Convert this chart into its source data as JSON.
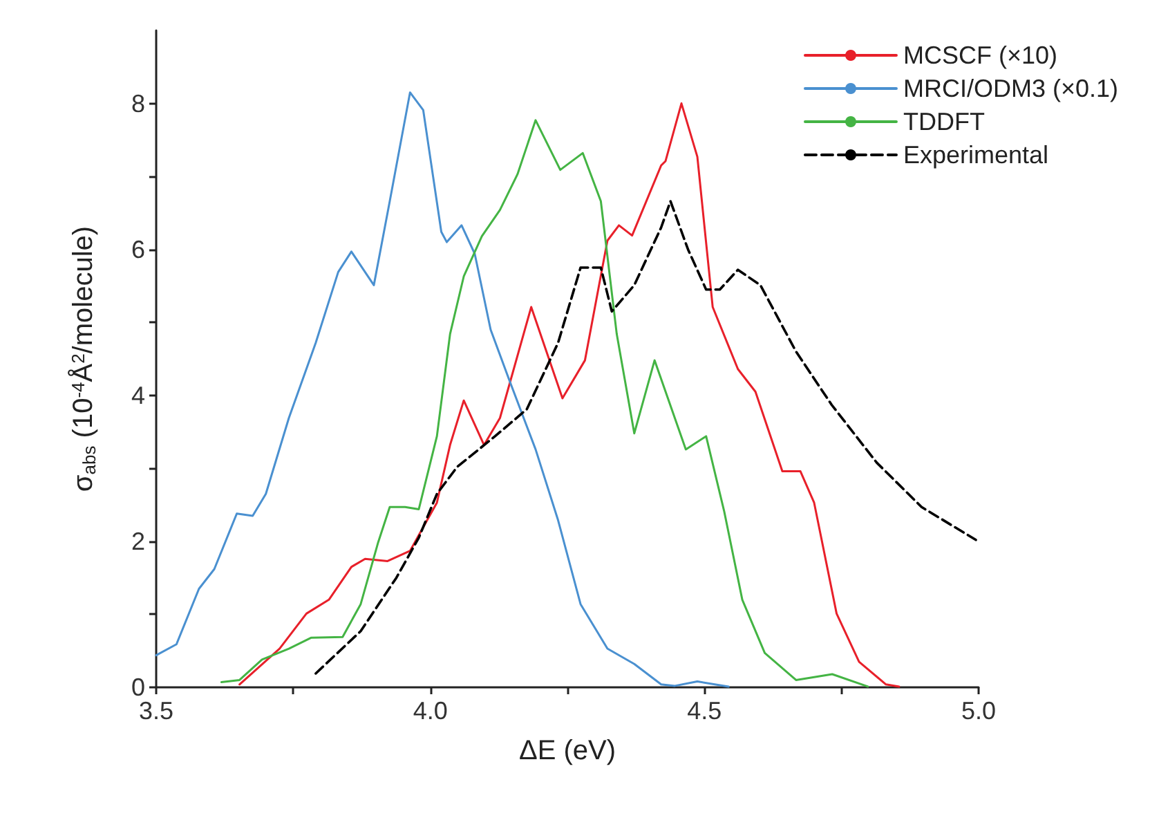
{
  "chart_data": {
    "type": "line",
    "xlabel": "ΔE (eV)",
    "ylabel": "σ$_{abs}$ (10$^{-4}$Å$^{2}$/molecule)",
    "xlim": [
      3.5,
      5.0
    ],
    "ylim": [
      0,
      9
    ],
    "xticks": [
      3.5,
      {
        "value": 3.75,
        "label": null
      },
      "4.0",
      {
        "value": 4.25,
        "label": null
      },
      4.5,
      {
        "value": 4.75,
        "label": null
      },
      "5.0"
    ],
    "yticks": [
      0,
      {
        "value": 1,
        "label": null
      },
      2,
      {
        "value": 3,
        "label": null
      },
      4,
      {
        "value": 5,
        "label": null
      },
      6,
      {
        "value": 7,
        "label": null
      },
      8
    ],
    "grid": false,
    "legend": "top right",
    "marker": "none",
    "series": [
      {
        "name": "MCSCF (×10)",
        "color": "#e8202a",
        "line_style": "solid",
        "x": [
          3.652,
          3.725,
          3.774,
          3.815,
          3.856,
          3.881,
          3.922,
          3.963,
          4.012,
          4.036,
          4.061,
          4.098,
          4.127,
          4.184,
          4.241,
          4.282,
          4.323,
          4.344,
          4.368,
          4.421,
          4.429,
          4.458,
          4.487,
          4.515,
          4.561,
          4.593,
          4.642,
          4.675,
          4.7,
          4.741,
          4.782,
          4.831,
          4.855
        ],
        "values": [
          0.04,
          0.53,
          1.01,
          1.2,
          1.65,
          1.76,
          1.73,
          1.87,
          2.53,
          3.32,
          3.93,
          3.32,
          3.69,
          5.21,
          3.96,
          4.48,
          6.12,
          6.33,
          6.19,
          7.15,
          7.21,
          8.0,
          7.27,
          5.21,
          4.36,
          4.05,
          2.96,
          2.96,
          2.53,
          1.01,
          0.35,
          0.04,
          0.01
        ]
      },
      {
        "name": "MRCI/ODM3 (×0.1)",
        "color": "#4a90d0",
        "line_style": "solid",
        "x": [
          3.5,
          3.537,
          3.578,
          3.606,
          3.647,
          3.676,
          3.7,
          3.742,
          3.791,
          3.832,
          3.856,
          3.897,
          3.926,
          3.963,
          3.987,
          4.02,
          4.03,
          4.057,
          4.081,
          4.11,
          4.143,
          4.192,
          4.233,
          4.274,
          4.323,
          4.372,
          4.421,
          4.446,
          4.487,
          4.544
        ],
        "values": [
          0.44,
          0.59,
          1.35,
          1.62,
          2.38,
          2.35,
          2.65,
          3.69,
          4.72,
          5.69,
          5.97,
          5.51,
          6.66,
          8.15,
          7.91,
          6.24,
          6.1,
          6.33,
          5.94,
          4.9,
          4.23,
          3.26,
          2.29,
          1.14,
          0.53,
          0.32,
          0.04,
          0.02,
          0.08,
          0.01
        ]
      },
      {
        "name": "TDDFT",
        "color": "#44b444",
        "line_style": "solid",
        "x": [
          3.619,
          3.652,
          3.693,
          3.742,
          3.783,
          3.84,
          3.873,
          3.905,
          3.926,
          3.954,
          3.979,
          4.012,
          4.036,
          4.061,
          4.094,
          4.127,
          4.159,
          4.192,
          4.237,
          4.278,
          4.311,
          4.34,
          4.372,
          4.409,
          4.466,
          4.503,
          4.536,
          4.569,
          4.61,
          4.667,
          4.733,
          4.798
        ],
        "values": [
          0.07,
          0.1,
          0.38,
          0.53,
          0.68,
          0.69,
          1.14,
          1.99,
          2.47,
          2.47,
          2.44,
          3.44,
          4.84,
          5.63,
          6.18,
          6.54,
          7.03,
          7.77,
          7.09,
          7.32,
          6.66,
          4.84,
          3.48,
          4.48,
          3.26,
          3.44,
          2.41,
          1.2,
          0.47,
          0.1,
          0.18,
          0.01
        ]
      },
      {
        "name": "Experimental",
        "color": "#000000",
        "line_style": "dashed",
        "x": [
          3.791,
          3.873,
          3.938,
          3.979,
          4.012,
          4.049,
          4.118,
          4.176,
          4.233,
          4.274,
          4.311,
          4.331,
          4.372,
          4.421,
          4.438,
          4.47,
          4.503,
          4.528,
          4.561,
          4.602,
          4.667,
          4.732,
          4.814,
          4.896,
          4.995
        ],
        "values": [
          0.19,
          0.77,
          1.5,
          2.05,
          2.65,
          3.02,
          3.44,
          3.81,
          4.72,
          5.75,
          5.75,
          5.15,
          5.51,
          6.3,
          6.66,
          6.0,
          5.45,
          5.45,
          5.72,
          5.51,
          4.6,
          3.87,
          3.08,
          2.47,
          2.02
        ]
      }
    ]
  }
}
